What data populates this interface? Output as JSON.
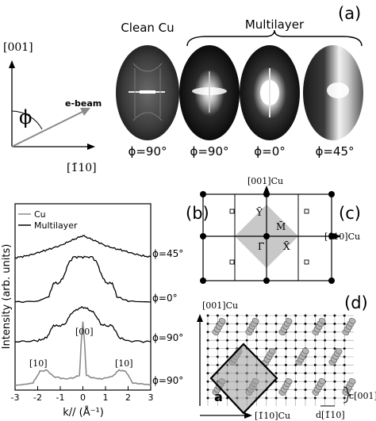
{
  "panel_a": {
    "label": "(a)",
    "heading_clean": "Clean Cu",
    "heading_multi": "Multilayer",
    "axis_vertical": "[001]",
    "axis_horizontal": "[1̄10]",
    "phi_symbol": "ϕ",
    "beam_label": "e-beam",
    "images": [
      {
        "caption": "ϕ=90°",
        "style": "clean"
      },
      {
        "caption": "ϕ=90°",
        "style": "multi90"
      },
      {
        "caption": "ϕ=0°",
        "style": "multi0"
      },
      {
        "caption": "ϕ=45°",
        "style": "multi45"
      }
    ]
  },
  "panel_b": {
    "label": "(b)",
    "legend": [
      {
        "name": "Cu",
        "color": "#8a8a8a"
      },
      {
        "name": "Multilayer",
        "color": "#000000"
      }
    ],
    "ylabel": "Intensity (arb. units)",
    "xlabel": "k// (Å⁻¹)",
    "annotations": [
      "[10]",
      "[00]",
      "[10]"
    ],
    "curve_labels": [
      "ϕ=45°",
      "ϕ=0°",
      "ϕ=90°",
      "ϕ=90°"
    ]
  },
  "chart_data": {
    "type": "line",
    "title": "",
    "xlabel": "k// (Å⁻¹)",
    "ylabel": "Intensity (arb. units)",
    "xlim": [
      -3,
      3
    ],
    "xticks": [
      "-3",
      "-2",
      "-1",
      "0",
      "1",
      "2",
      "3"
    ],
    "series": [
      {
        "name": "Multilayer",
        "label": "ϕ=45°",
        "x": [
          -3.0,
          -2.6,
          -2.2,
          -1.8,
          -1.4,
          -1.0,
          -0.6,
          -0.3,
          0.0,
          0.3,
          0.6,
          1.0,
          1.4,
          1.8,
          2.2,
          2.6,
          3.0
        ],
        "y": [
          0.02,
          0.06,
          0.12,
          0.2,
          0.28,
          0.36,
          0.48,
          0.56,
          0.64,
          0.56,
          0.48,
          0.36,
          0.28,
          0.22,
          0.14,
          0.08,
          0.04
        ]
      },
      {
        "name": "Multilayer",
        "label": "ϕ=0°",
        "x": [
          -3.0,
          -2.0,
          -1.5,
          -1.3,
          -1.1,
          -0.9,
          -0.6,
          -0.4,
          0.0,
          0.4,
          0.6,
          0.9,
          1.1,
          1.3,
          1.5,
          2.0,
          3.0
        ],
        "y": [
          0.0,
          0.02,
          0.12,
          0.42,
          0.4,
          0.5,
          0.88,
          0.98,
          0.98,
          0.98,
          0.88,
          0.5,
          0.4,
          0.42,
          0.12,
          0.02,
          0.0
        ]
      },
      {
        "name": "Multilayer",
        "label": "ϕ=90°",
        "x": [
          -3.0,
          -2.0,
          -1.6,
          -1.3,
          -1.1,
          -0.8,
          -0.5,
          -0.2,
          0.0,
          0.2,
          0.5,
          0.8,
          1.1,
          1.3,
          1.6,
          2.0,
          3.0
        ],
        "y": [
          0.0,
          0.02,
          0.1,
          0.4,
          0.38,
          0.42,
          0.7,
          0.8,
          0.84,
          0.8,
          0.7,
          0.42,
          0.38,
          0.4,
          0.1,
          0.02,
          0.0
        ]
      },
      {
        "name": "Cu",
        "label": "ϕ=90°",
        "x": [
          -3.0,
          -2.2,
          -1.9,
          -1.6,
          -1.3,
          -0.8,
          -0.4,
          -0.15,
          -0.07,
          0.0,
          0.07,
          0.15,
          0.4,
          0.8,
          1.3,
          1.6,
          1.9,
          2.2,
          3.0
        ],
        "y": [
          0.0,
          0.04,
          0.22,
          0.24,
          0.14,
          0.1,
          0.12,
          0.16,
          0.7,
          1.0,
          0.7,
          0.16,
          0.12,
          0.1,
          0.14,
          0.24,
          0.22,
          0.04,
          0.0
        ]
      }
    ]
  },
  "panel_c": {
    "label": "(c)",
    "axis_vertical": "[001]Cu",
    "axis_horizontal": "[1̄10]Cu",
    "points": {
      "Y": "Ȳ",
      "M": "M̄",
      "G": "Γ̄",
      "X": "X̄"
    }
  },
  "panel_d": {
    "label": "(d)",
    "axis_vertical": "[001]Cu",
    "axis_horizontal": "[1̄10]Cu",
    "cell_label": "a",
    "spacing_c": "c[001]",
    "spacing_d": "d[1̄10]"
  }
}
